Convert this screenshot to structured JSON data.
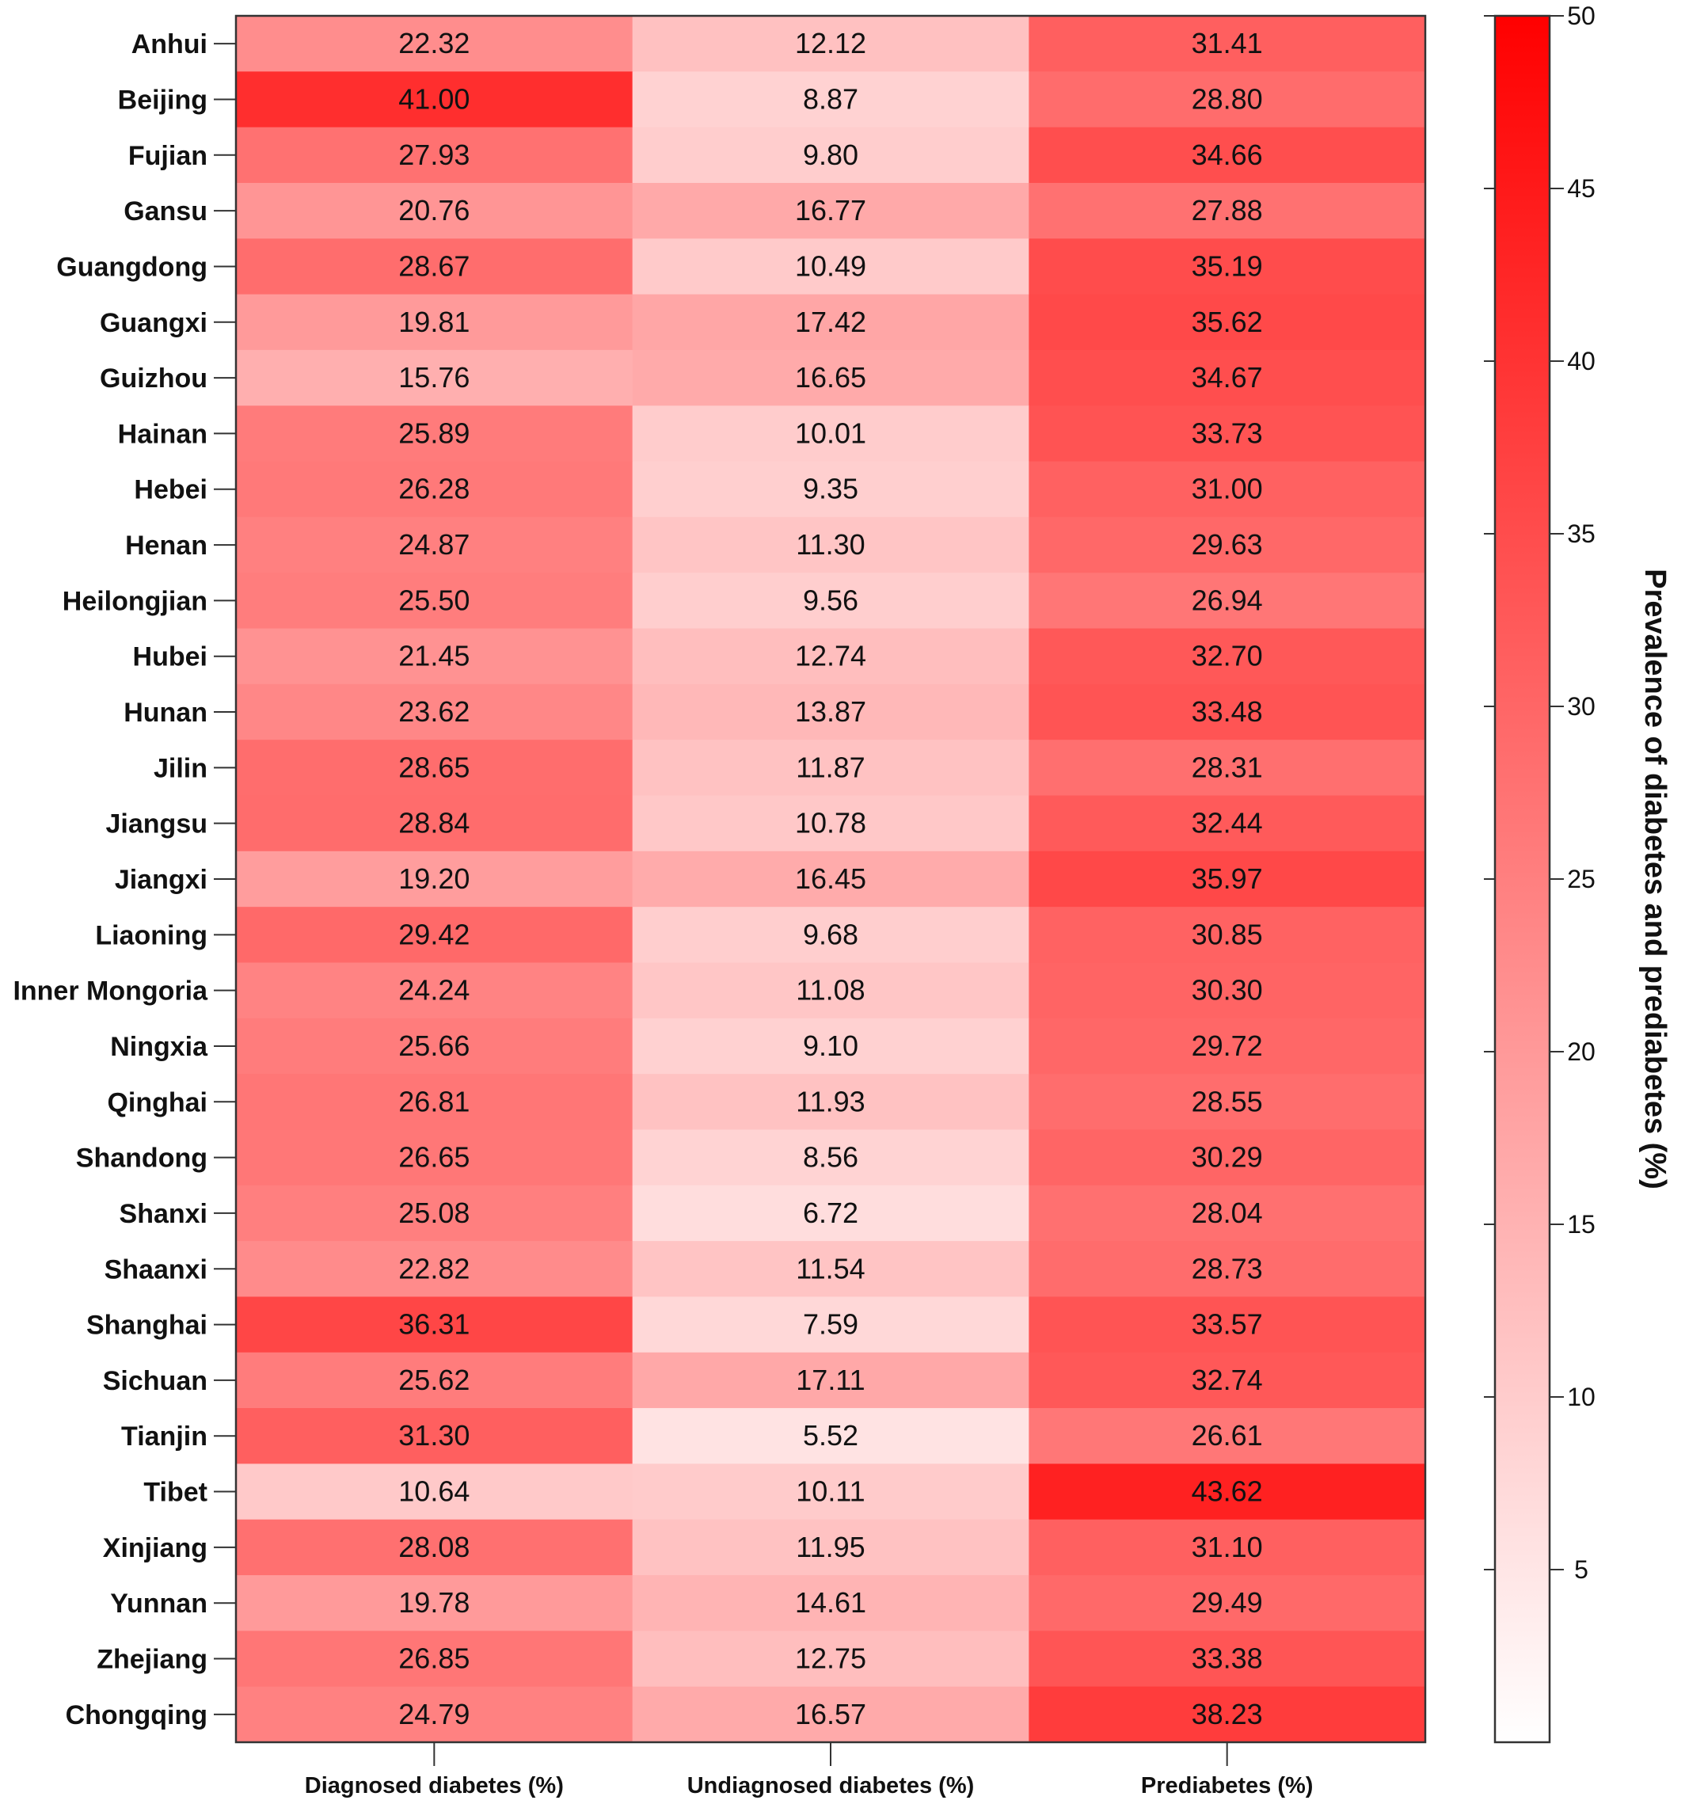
{
  "chart_data": {
    "type": "heatmap",
    "columns": [
      "Diagnosed diabetes (%)",
      "Undiagnosed diabetes (%)",
      "Prediabetes (%)"
    ],
    "rows": [
      "Anhui",
      "Beijing",
      "Fujian",
      "Gansu",
      "Guangdong",
      "Guangxi",
      "Guizhou",
      "Hainan",
      "Hebei",
      "Henan",
      "Heilongjian",
      "Hubei",
      "Hunan",
      "Jilin",
      "Jiangsu",
      "Jiangxi",
      "Liaoning",
      "Inner Mongoria",
      "Ningxia",
      "Qinghai",
      "Shandong",
      "Shanxi",
      "Shaanxi",
      "Shanghai",
      "Sichuan",
      "Tianjin",
      "Tibet",
      "Xinjiang",
      "Yunnan",
      "Zhejiang",
      "Chongqing"
    ],
    "values": [
      [
        "22.32",
        "12.12",
        "31.41"
      ],
      [
        "41.00",
        "8.87",
        "28.80"
      ],
      [
        "27.93",
        "9.80",
        "34.66"
      ],
      [
        "20.76",
        "16.77",
        "27.88"
      ],
      [
        "28.67",
        "10.49",
        "35.19"
      ],
      [
        "19.81",
        "17.42",
        "35.62"
      ],
      [
        "15.76",
        "16.65",
        "34.67"
      ],
      [
        "25.89",
        "10.01",
        "33.73"
      ],
      [
        "26.28",
        "9.35",
        "31.00"
      ],
      [
        "24.87",
        "11.30",
        "29.63"
      ],
      [
        "25.50",
        "9.56",
        "26.94"
      ],
      [
        "21.45",
        "12.74",
        "32.70"
      ],
      [
        "23.62",
        "13.87",
        "33.48"
      ],
      [
        "28.65",
        "11.87",
        "28.31"
      ],
      [
        "28.84",
        "10.78",
        "32.44"
      ],
      [
        "19.20",
        "16.45",
        "35.97"
      ],
      [
        "29.42",
        "9.68",
        "30.85"
      ],
      [
        "24.24",
        "11.08",
        "30.30"
      ],
      [
        "25.66",
        "9.10",
        "29.72"
      ],
      [
        "26.81",
        "11.93",
        "28.55"
      ],
      [
        "26.65",
        "8.56",
        "30.29"
      ],
      [
        "25.08",
        "6.72",
        "28.04"
      ],
      [
        "22.82",
        "11.54",
        "28.73"
      ],
      [
        "36.31",
        "7.59",
        "33.57"
      ],
      [
        "25.62",
        "17.11",
        "32.74"
      ],
      [
        "31.30",
        "5.52",
        "26.61"
      ],
      [
        "10.64",
        "10.11",
        "43.62"
      ],
      [
        "28.08",
        "11.95",
        "31.10"
      ],
      [
        "19.78",
        "14.61",
        "29.49"
      ],
      [
        "26.85",
        "12.75",
        "33.38"
      ],
      [
        "24.79",
        "16.57",
        "38.23"
      ]
    ],
    "colorbar": {
      "label": "Prevalence of diabetes and prediabetes (%)",
      "range": [
        0,
        50
      ],
      "ticks": [
        "5",
        "10",
        "15",
        "20",
        "25",
        "30",
        "35",
        "40",
        "45",
        "50"
      ],
      "color_low": "#ffffff",
      "color_high": "#ff0000"
    },
    "grid": false,
    "legend_placement": "right"
  }
}
